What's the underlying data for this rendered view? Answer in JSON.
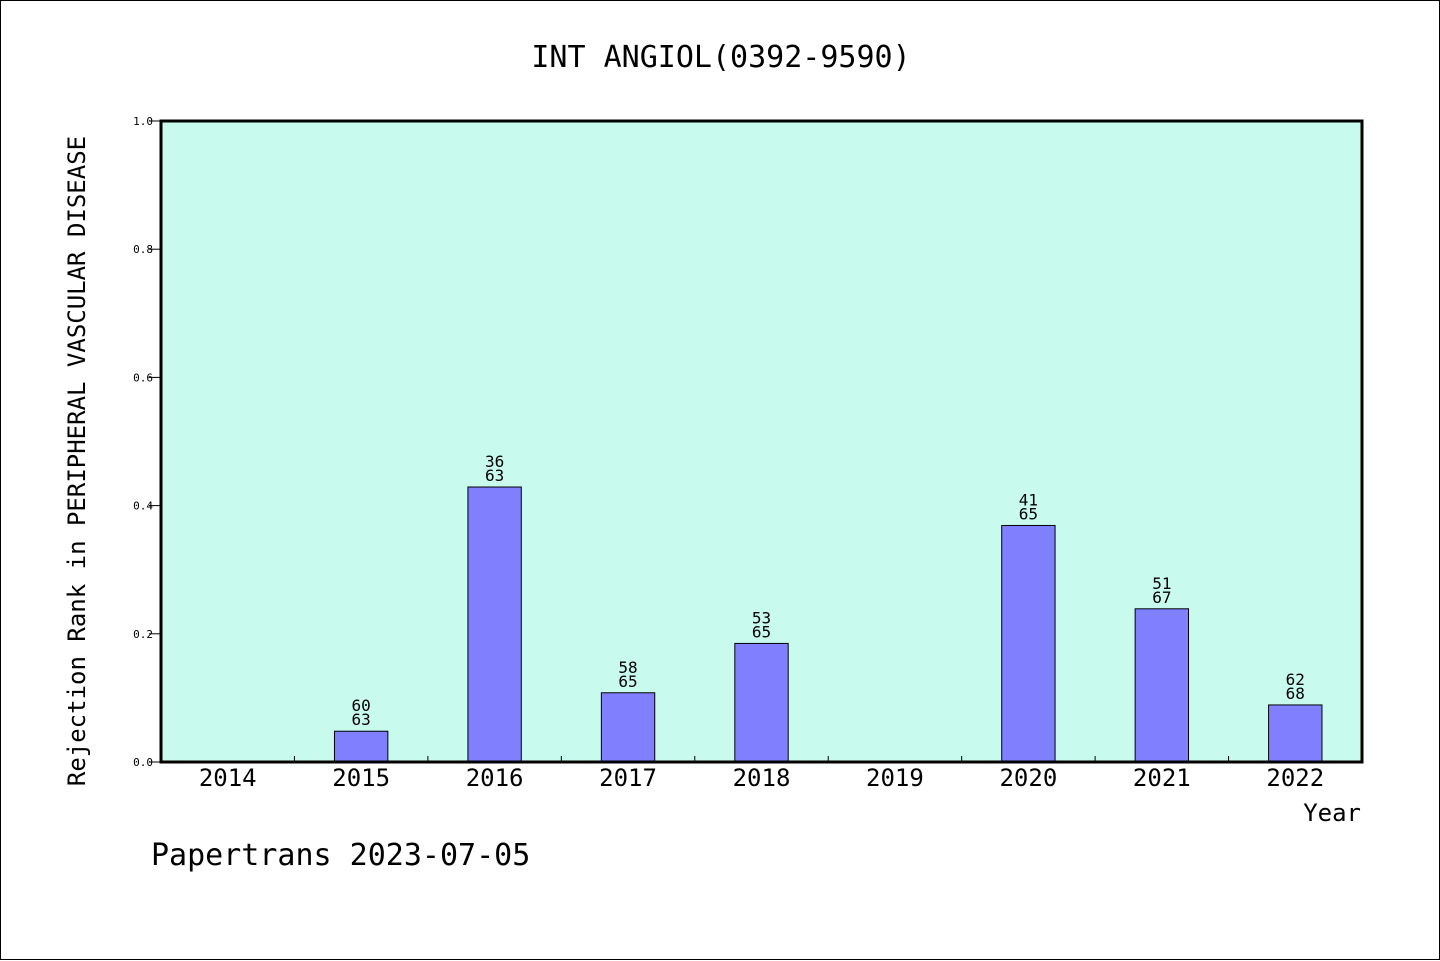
{
  "chart_data": {
    "type": "bar",
    "title": "INT ANGIOL(0392-9590)",
    "xlabel": "Year",
    "ylabel": "Rejection Rank in PERIPHERAL VASCULAR DISEASE",
    "ylim": [
      0,
      1.0
    ],
    "yticks": [
      "0.0",
      "0.2",
      "0.4",
      "0.6",
      "0.8",
      "1.0"
    ],
    "categories": [
      "2014",
      "2015",
      "2016",
      "2017",
      "2018",
      "2019",
      "2020",
      "2021",
      "2022"
    ],
    "values": [
      null,
      0.048,
      0.429,
      0.108,
      0.185,
      null,
      0.369,
      0.239,
      0.089
    ],
    "labels_top": [
      null,
      "60",
      "36",
      "58",
      "53",
      null,
      "41",
      "51",
      "62"
    ],
    "labels_bottom": [
      null,
      "63",
      "63",
      "65",
      "65",
      null,
      "65",
      "67",
      "68"
    ],
    "bar_color": "#8080ff",
    "plot_background": "#c8fbee",
    "grid": false
  },
  "footer": "Papertrans 2023-07-05"
}
